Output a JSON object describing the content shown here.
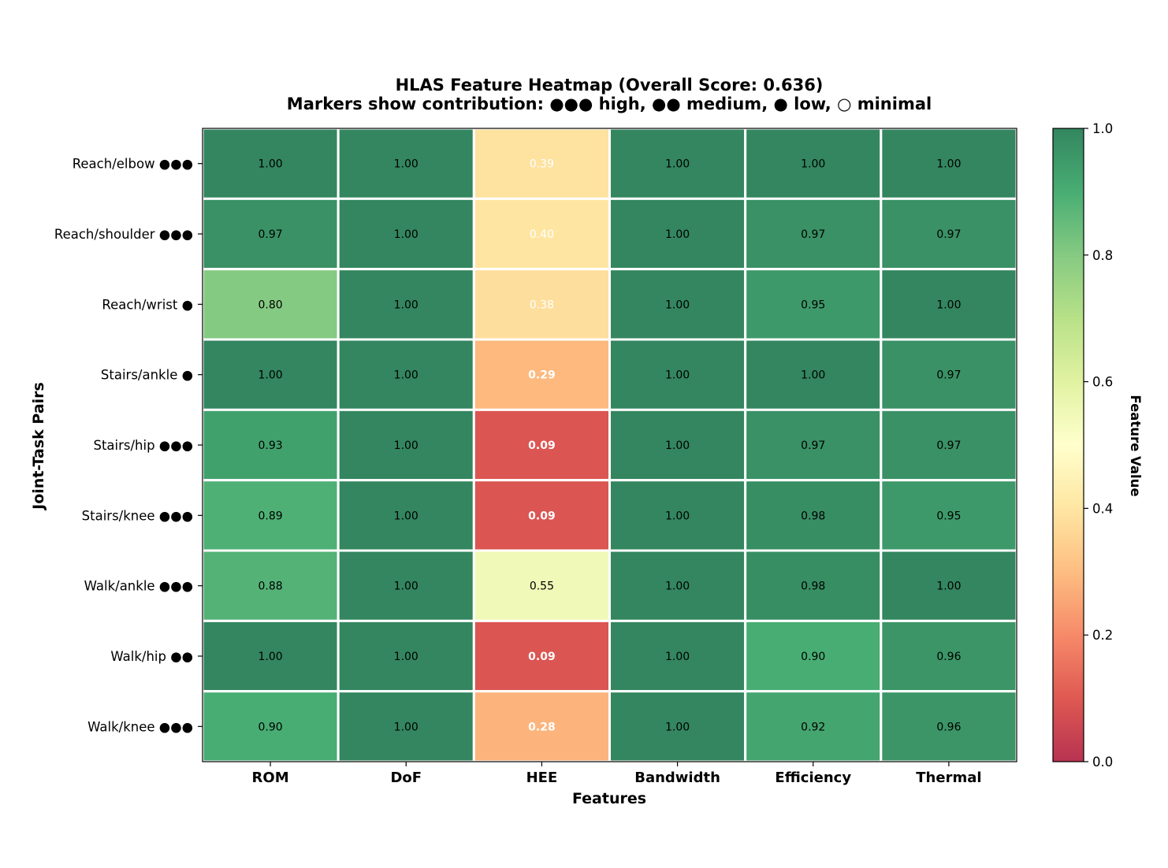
{
  "chart_data": {
    "type": "heatmap",
    "title": "HLAS Feature Heatmap (Overall Score: 0.636)",
    "subtitle": "Markers show contribution: ●●● high, ●● medium, ● low, ○ minimal",
    "xlabel": "Features",
    "ylabel": "Joint-Task Pairs",
    "columns": [
      "ROM",
      "DoF",
      "HEE",
      "Bandwidth",
      "Efficiency",
      "Thermal"
    ],
    "rows": [
      {
        "label": "Reach/elbow ●●●",
        "values": [
          1.0,
          1.0,
          0.39,
          1.0,
          1.0,
          1.0
        ]
      },
      {
        "label": "Reach/shoulder ●●●",
        "values": [
          0.97,
          1.0,
          0.4,
          1.0,
          0.97,
          0.97
        ]
      },
      {
        "label": "Reach/wrist ●",
        "values": [
          0.8,
          1.0,
          0.38,
          1.0,
          0.95,
          1.0
        ]
      },
      {
        "label": "Stairs/ankle ●",
        "values": [
          1.0,
          1.0,
          0.29,
          1.0,
          1.0,
          0.97
        ]
      },
      {
        "label": "Stairs/hip ●●●",
        "values": [
          0.93,
          1.0,
          0.09,
          1.0,
          0.97,
          0.97
        ]
      },
      {
        "label": "Stairs/knee ●●●",
        "values": [
          0.89,
          1.0,
          0.09,
          1.0,
          0.98,
          0.95
        ]
      },
      {
        "label": "Walk/ankle ●●●",
        "values": [
          0.88,
          1.0,
          0.55,
          1.0,
          0.98,
          1.0
        ]
      },
      {
        "label": "Walk/hip ●●",
        "values": [
          1.0,
          1.0,
          0.09,
          1.0,
          0.9,
          0.96
        ]
      },
      {
        "label": "Walk/knee ●●●",
        "values": [
          0.9,
          1.0,
          0.28,
          1.0,
          0.92,
          0.96
        ]
      }
    ],
    "cell_labels": [
      [
        "1.00",
        "1.00",
        "0.39",
        "1.00",
        "1.00",
        "1.00"
      ],
      [
        "0.97",
        "1.00",
        "0.40",
        "1.00",
        "0.97",
        "0.97"
      ],
      [
        "0.80",
        "1.00",
        "0.38",
        "1.00",
        "0.95",
        "1.00"
      ],
      [
        "1.00",
        "1.00",
        "0.29",
        "1.00",
        "1.00",
        "0.97"
      ],
      [
        "0.93",
        "1.00",
        "0.09",
        "1.00",
        "0.97",
        "0.97"
      ],
      [
        "0.89",
        "1.00",
        "0.09",
        "1.00",
        "0.98",
        "0.95"
      ],
      [
        "0.88",
        "1.00",
        "0.55",
        "1.00",
        "0.98",
        "1.00"
      ],
      [
        "1.00",
        "1.00",
        "0.09",
        "1.00",
        "0.90",
        "0.96"
      ],
      [
        "0.90",
        "1.00",
        "0.28",
        "1.00",
        "0.92",
        "0.96"
      ]
    ],
    "colorbar": {
      "label": "Feature Value",
      "range": [
        0.0,
        1.0
      ],
      "ticks": [
        "0.0",
        "0.2",
        "0.4",
        "0.6",
        "0.8",
        "1.0"
      ],
      "colormap": "RdYlGn"
    }
  }
}
